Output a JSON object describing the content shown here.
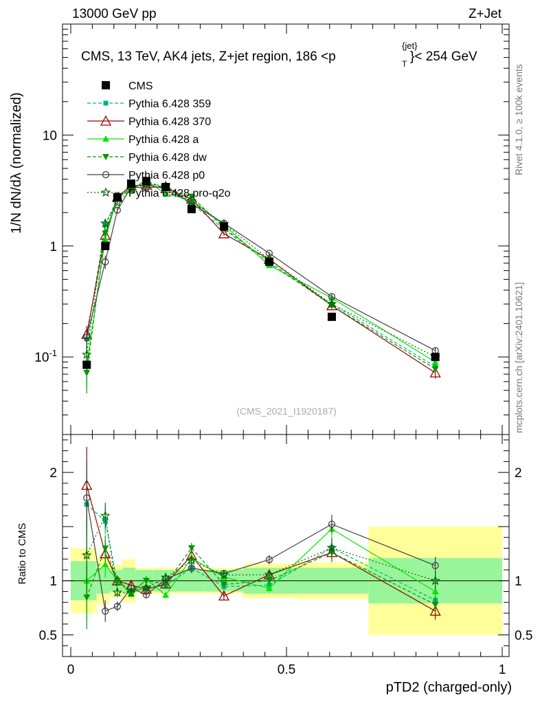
{
  "header": {
    "left": "13000 GeV pp",
    "right": "Z+Jet"
  },
  "side_labels": {
    "rivet": "Rivet 4.1.0, ≥ 100k events",
    "mcplots": "mcplots.cern.ch [arXiv:2401.10621]"
  },
  "plot_title": "CMS, 13 TeV, AK4 jets, Z+jet region, 186 <p",
  "plot_title_sup": "{jet}",
  "plot_title_sub": "T",
  "plot_title_end": "}< 254 GeV",
  "watermark": "(CMS_2021_I1920187)",
  "y_axis_label": "1/N dN/dλ (normalized)",
  "ratio_axis_label": "Ratio to CMS",
  "x_axis_label": "pTD2 (charged-only)",
  "colors": {
    "cms": "#000000",
    "p359": "#00b380",
    "p370": "#990000",
    "pa": "#00e600",
    "pdw": "#009900",
    "pp0": "#404040",
    "pq2o": "#006600",
    "band_inner": "#99f599",
    "band_outer": "#ffff99"
  },
  "chart_data": {
    "type": "line",
    "x_scale": "linear",
    "y_scale": "log",
    "xlim": [
      0,
      1
    ],
    "ylim": [
      0.02,
      100
    ],
    "ratio_ylim": [
      0.3,
      2.35
    ],
    "x_ticks": [
      "0",
      "0.5",
      "1"
    ],
    "y_ticks": [
      "10^-1",
      "1",
      "10"
    ],
    "ratio_ticks": [
      "0.5",
      "1",
      "2"
    ],
    "bin_edges": [
      0,
      0.06,
      0.09,
      0.12,
      0.15,
      0.19,
      0.24,
      0.31,
      0.4,
      0.52,
      0.69,
      1.0
    ],
    "x": [
      0.037,
      0.08,
      0.108,
      0.14,
      0.175,
      0.22,
      0.28,
      0.355,
      0.46,
      0.605,
      0.845
    ],
    "cms": {
      "name": "CMS",
      "values": [
        0.085,
        1.0,
        2.75,
        3.65,
        3.85,
        3.4,
        2.15,
        1.5,
        0.72,
        0.23,
        0.1
      ],
      "band_inner": [
        0.18,
        0.12,
        0.1,
        0.12,
        0.1,
        0.1,
        0.1,
        0.1,
        0.12,
        0.12,
        0.21
      ],
      "band_outer": [
        0.3,
        0.22,
        0.15,
        0.2,
        0.12,
        0.12,
        0.12,
        0.12,
        0.16,
        0.17,
        0.5
      ]
    },
    "series": [
      {
        "name": "Pythia 6.428 359",
        "key": "p359",
        "marker": "square",
        "dash": true,
        "values": [
          0.145,
          1.55,
          2.7,
          3.3,
          3.6,
          3.25,
          2.4,
          1.42,
          0.69,
          0.3,
          0.082
        ],
        "errors": [
          0.03,
          0.12,
          0.12,
          0.12,
          0.12,
          0.1,
          0.1,
          0.05,
          0.03,
          0.02,
          0.008
        ]
      },
      {
        "name": "Pythia 6.428 370",
        "key": "p370",
        "marker": "triangle-open",
        "dash": false,
        "values": [
          0.16,
          1.25,
          2.75,
          3.5,
          3.55,
          3.3,
          2.65,
          1.29,
          0.76,
          0.29,
          0.072
        ],
        "errors": [
          0.03,
          0.12,
          0.12,
          0.12,
          0.12,
          0.1,
          0.1,
          0.05,
          0.03,
          0.02,
          0.008
        ]
      },
      {
        "name": "Pythia 6.428 a",
        "key": "pa",
        "marker": "triangle",
        "dash": false,
        "values": [
          0.085,
          1.15,
          2.75,
          3.2,
          3.9,
          2.95,
          2.6,
          1.55,
          0.67,
          0.34,
          0.09
        ],
        "errors": [
          0.03,
          0.12,
          0.12,
          0.12,
          0.12,
          0.1,
          0.1,
          0.05,
          0.03,
          0.02,
          0.008
        ]
      },
      {
        "name": "Pythia 6.428 dw",
        "key": "pdw",
        "marker": "triangle-down",
        "dash": true,
        "values": [
          0.072,
          1.3,
          2.75,
          3.3,
          3.85,
          3.3,
          2.8,
          1.45,
          0.72,
          0.29,
          0.078
        ],
        "errors": [
          0.025,
          0.12,
          0.12,
          0.12,
          0.12,
          0.1,
          0.1,
          0.05,
          0.03,
          0.02,
          0.008
        ]
      },
      {
        "name": "Pythia 6.428 p0",
        "key": "pp0",
        "marker": "circle-open",
        "dash": false,
        "values": [
          0.15,
          0.72,
          2.1,
          3.4,
          3.35,
          3.45,
          2.4,
          1.6,
          0.86,
          0.35,
          0.114
        ],
        "errors": [
          0.03,
          0.1,
          0.12,
          0.12,
          0.12,
          0.1,
          0.1,
          0.05,
          0.03,
          0.02,
          0.008
        ]
      },
      {
        "name": "Pythia 6.428 pro-q2o",
        "key": "pq2o",
        "marker": "star",
        "dash": "dot",
        "values": [
          0.105,
          1.6,
          2.45,
          3.25,
          3.6,
          3.5,
          2.55,
          1.58,
          0.76,
          0.3,
          0.1
        ],
        "errors": [
          0.03,
          0.12,
          0.12,
          0.12,
          0.12,
          0.1,
          0.1,
          0.05,
          0.03,
          0.02,
          0.008
        ]
      }
    ]
  }
}
